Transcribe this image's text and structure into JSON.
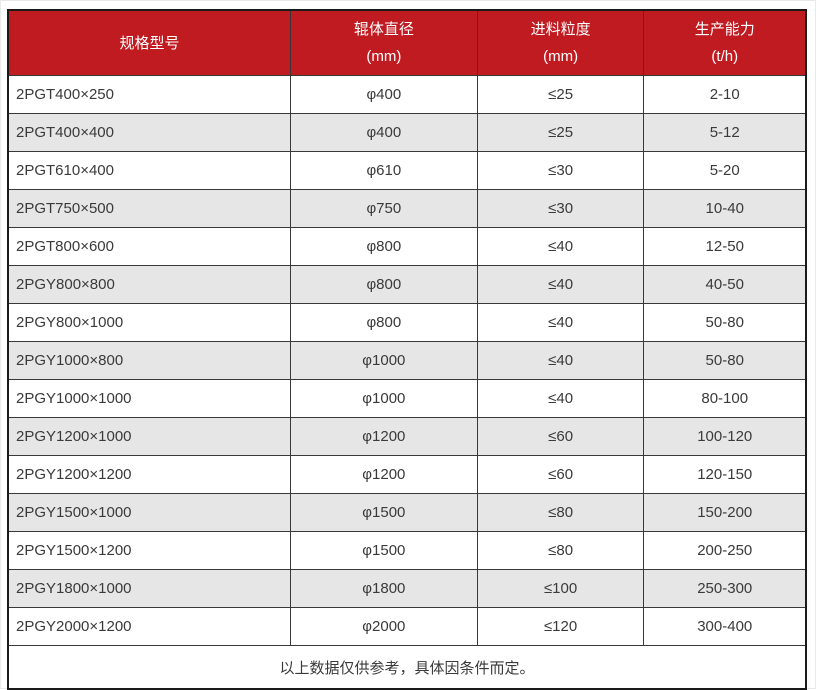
{
  "chart_data": {
    "type": "table",
    "title": "",
    "columns": [
      {
        "title": "规格型号",
        "unit": ""
      },
      {
        "title": "辊体直径",
        "unit": "(mm)"
      },
      {
        "title": "进料粒度",
        "unit": "(mm)"
      },
      {
        "title": "生产能力",
        "unit": "(t/h)"
      }
    ],
    "rows": [
      [
        "2PGT400×250",
        "φ400",
        "≤25",
        "2-10"
      ],
      [
        "2PGT400×400",
        "φ400",
        "≤25",
        "5-12"
      ],
      [
        "2PGT610×400",
        "φ610",
        "≤30",
        "5-20"
      ],
      [
        "2PGT750×500",
        "φ750",
        "≤30",
        "10-40"
      ],
      [
        "2PGT800×600",
        "φ800",
        "≤40",
        "12-50"
      ],
      [
        "2PGY800×800",
        "φ800",
        "≤40",
        "40-50"
      ],
      [
        "2PGY800×1000",
        "φ800",
        "≤40",
        "50-80"
      ],
      [
        "2PGY1000×800",
        "φ1000",
        "≤40",
        "50-80"
      ],
      [
        "2PGY1000×1000",
        "φ1000",
        "≤40",
        "80-100"
      ],
      [
        "2PGY1200×1000",
        "φ1200",
        "≤60",
        "100-120"
      ],
      [
        "2PGY1200×1200",
        "φ1200",
        "≤60",
        "120-150"
      ],
      [
        "2PGY1500×1000",
        "φ1500",
        "≤80",
        "150-200"
      ],
      [
        "2PGY1500×1200",
        "φ1500",
        "≤80",
        "200-250"
      ],
      [
        "2PGY1800×1000",
        "φ1800",
        "≤100",
        "250-300"
      ],
      [
        "2PGY2000×1200",
        "φ2000",
        "≤120",
        "300-400"
      ]
    ],
    "footnote": "以上数据仅供参考，具体因条件而定。"
  },
  "colors": {
    "header_bg": "#bf1b21",
    "header_text": "#ffffff",
    "row_bg": "#ffffff",
    "row_alt_bg": "#e6e6e6",
    "border": "#383838",
    "outer_border": "#1a1a1a",
    "text": "#3a3a3a"
  }
}
